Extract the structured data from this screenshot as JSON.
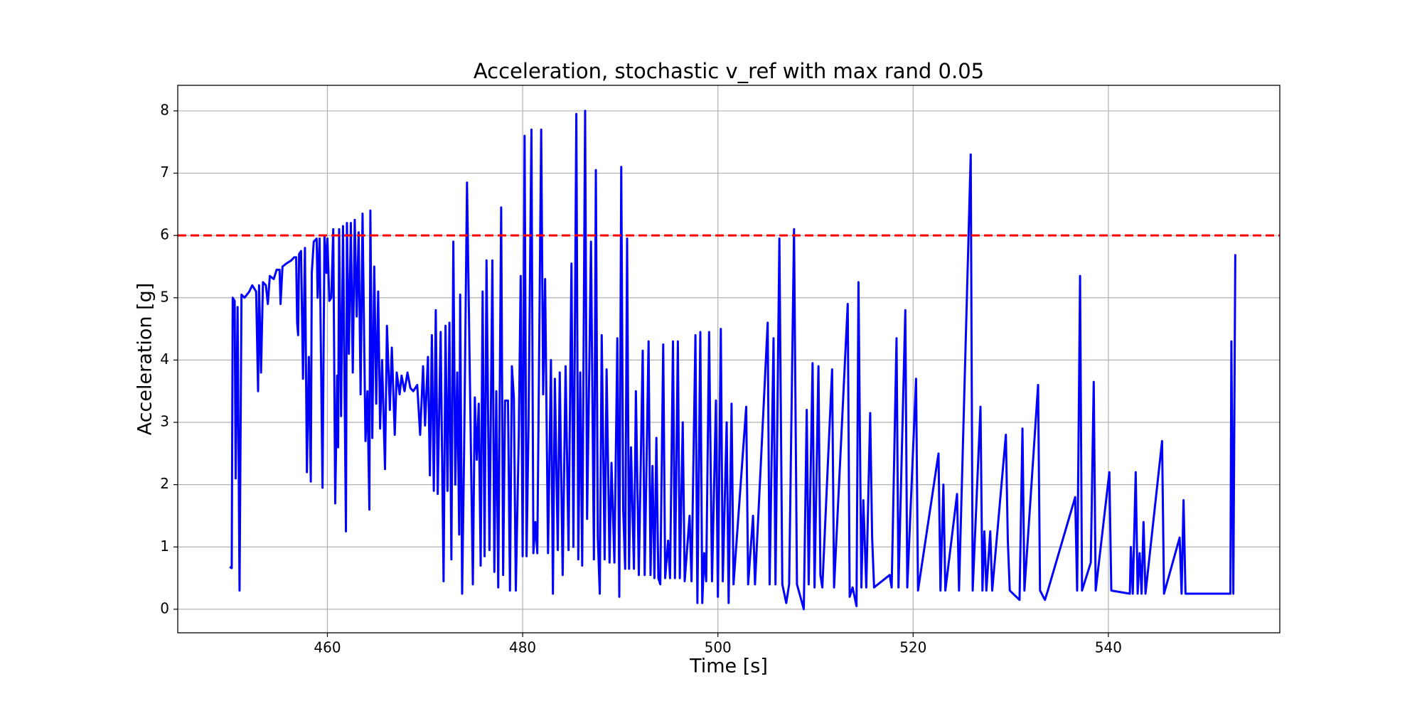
{
  "chart_data": {
    "type": "line",
    "title": "Acceleration, stochastic v_ref with max rand 0.05",
    "xlabel": "Time [s]",
    "ylabel": "Acceleration [g]",
    "xlim": [
      444.67,
      557.56
    ],
    "ylim": [
      -0.378,
      8.41
    ],
    "xticks": [
      460,
      480,
      500,
      520,
      540
    ],
    "yticks": [
      0,
      1,
      2,
      3,
      4,
      5,
      6,
      7,
      8
    ],
    "grid": true,
    "hline": {
      "value": 6,
      "color": "#ff0000"
    },
    "x": [
      450.0,
      450.2,
      450.3,
      450.5,
      450.6,
      450.8,
      451.0,
      451.2,
      451.5,
      452.0,
      452.3,
      452.7,
      452.9,
      453.0,
      453.2,
      453.4,
      453.7,
      453.9,
      454.1,
      454.5,
      454.8,
      455.1,
      455.2,
      455.4,
      455.8,
      456.3,
      456.6,
      456.8,
      456.9,
      457.0,
      457.1,
      457.3,
      457.5,
      457.7,
      457.9,
      458.1,
      458.3,
      458.4,
      458.6,
      458.9,
      459.0,
      459.2,
      459.5,
      459.7,
      459.9,
      460.0,
      460.2,
      460.4,
      460.6,
      460.8,
      461.0,
      461.1,
      461.2,
      461.4,
      461.6,
      461.9,
      462.0,
      462.2,
      462.4,
      462.6,
      462.8,
      463.0,
      463.2,
      463.4,
      463.6,
      463.9,
      464.1,
      464.3,
      464.4,
      464.6,
      464.8,
      465.0,
      465.2,
      465.4,
      465.6,
      465.9,
      466.1,
      466.4,
      466.6,
      466.9,
      467.1,
      467.4,
      467.6,
      467.9,
      468.2,
      468.5,
      468.8,
      469.2,
      469.5,
      469.8,
      470.0,
      470.3,
      470.5,
      470.7,
      470.9,
      471.1,
      471.3,
      471.6,
      471.9,
      472.1,
      472.3,
      472.5,
      472.7,
      472.9,
      473.1,
      473.3,
      473.5,
      473.6,
      473.8,
      474.0,
      474.3,
      474.6,
      474.9,
      475.1,
      475.3,
      475.5,
      475.7,
      475.9,
      476.1,
      476.3,
      476.6,
      476.9,
      477.1,
      477.3,
      477.5,
      477.8,
      478.0,
      478.2,
      478.5,
      478.7,
      478.9,
      479.1,
      479.3,
      479.6,
      479.8,
      480.0,
      480.2,
      480.4,
      480.6,
      480.9,
      481.1,
      481.3,
      481.5,
      481.9,
      482.1,
      482.3,
      482.6,
      482.9,
      483.1,
      483.3,
      483.6,
      483.8,
      484.1,
      484.4,
      484.7,
      485.0,
      485.2,
      485.5,
      485.7,
      485.9,
      486.1,
      486.4,
      486.6,
      486.8,
      487.0,
      487.3,
      487.5,
      487.7,
      487.9,
      488.1,
      488.4,
      488.6,
      488.9,
      489.1,
      489.4,
      489.7,
      489.9,
      490.1,
      490.3,
      490.5,
      490.7,
      490.9,
      491.1,
      491.4,
      491.6,
      491.9,
      492.3,
      492.5,
      492.9,
      493.1,
      493.3,
      493.5,
      493.7,
      493.9,
      494.1,
      494.4,
      494.6,
      494.9,
      495.1,
      495.4,
      495.6,
      495.9,
      496.1,
      496.4,
      496.6,
      497.1,
      497.3,
      497.7,
      497.9,
      498.2,
      498.4,
      498.6,
      498.8,
      499.1,
      499.4,
      499.8,
      500.0,
      500.3,
      500.5,
      500.9,
      501.1,
      501.4,
      501.6,
      502.9,
      503.1,
      503.6,
      503.8,
      505.1,
      505.3,
      505.7,
      505.9,
      506.3,
      506.6,
      507.0,
      507.3,
      507.8,
      508.1,
      508.8,
      509.1,
      509.3,
      509.7,
      509.9,
      510.3,
      510.5,
      510.7,
      511.7,
      511.9,
      513.3,
      513.5,
      513.8,
      514.2,
      514.4,
      514.7,
      514.9,
      515.2,
      515.6,
      515.8,
      516.0,
      517.6,
      517.8,
      518.3,
      518.5,
      519.2,
      519.4,
      520.3,
      520.5,
      522.6,
      522.8,
      523.1,
      523.3,
      524.5,
      524.7,
      525.9,
      526.1,
      526.9,
      527.1,
      527.3,
      527.5,
      527.9,
      528.1,
      529.5,
      529.7,
      529.9,
      530.9,
      531.2,
      531.4,
      532.8,
      533.0,
      533.5,
      533.8,
      536.6,
      536.8,
      537.1,
      537.3,
      538.2,
      538.5,
      538.7,
      540.1,
      540.3,
      542.2,
      542.3,
      542.5,
      542.8,
      543.0,
      543.2,
      543.4,
      543.6,
      543.8,
      545.5,
      545.7,
      547.3,
      547.5,
      547.7,
      547.9,
      552.5,
      552.6,
      552.8,
      553.0
    ],
    "series": [
      {
        "color": "#0000ff",
        "values": [
          0.68,
          0.66,
          5.0,
          4.95,
          2.1,
          4.85,
          0.3,
          5.05,
          5.0,
          5.1,
          5.2,
          5.1,
          3.5,
          5.2,
          3.8,
          5.25,
          5.2,
          4.9,
          5.35,
          5.3,
          5.45,
          5.45,
          4.9,
          5.5,
          5.55,
          5.6,
          5.65,
          5.65,
          4.6,
          4.4,
          5.7,
          5.75,
          3.7,
          5.8,
          2.2,
          4.05,
          2.05,
          5.4,
          5.9,
          5.95,
          5.0,
          5.95,
          1.95,
          6.0,
          5.4,
          5.95,
          4.95,
          5.0,
          6.1,
          1.7,
          3.75,
          2.6,
          6.1,
          3.1,
          6.15,
          1.25,
          6.2,
          4.1,
          6.2,
          3.8,
          6.25,
          4.7,
          6.05,
          3.45,
          6.35,
          2.7,
          3.5,
          1.6,
          6.4,
          2.75,
          5.5,
          3.3,
          5.1,
          2.9,
          4.0,
          2.25,
          4.55,
          3.2,
          4.2,
          2.8,
          3.8,
          3.45,
          3.75,
          3.5,
          3.8,
          3.55,
          3.5,
          3.6,
          2.8,
          3.9,
          2.95,
          4.05,
          2.15,
          4.4,
          1.9,
          4.8,
          1.85,
          4.45,
          0.45,
          4.55,
          1.9,
          4.6,
          0.8,
          5.9,
          2.0,
          3.8,
          1.2,
          5.05,
          0.25,
          2.5,
          6.85,
          3.65,
          0.4,
          3.4,
          2.4,
          3.3,
          0.7,
          5.1,
          0.85,
          5.6,
          0.95,
          5.6,
          0.6,
          3.5,
          0.35,
          6.45,
          0.55,
          3.35,
          3.35,
          0.3,
          3.9,
          3.4,
          0.3,
          2.75,
          5.35,
          0.85,
          7.6,
          0.85,
          2.95,
          7.7,
          0.9,
          1.4,
          0.9,
          7.7,
          3.45,
          5.3,
          0.9,
          4.0,
          0.25,
          3.7,
          0.95,
          3.8,
          0.55,
          3.9,
          0.95,
          5.55,
          1.0,
          7.95,
          0.8,
          3.8,
          0.7,
          8.0,
          1.45,
          3.6,
          5.9,
          0.8,
          7.05,
          1.15,
          0.25,
          4.4,
          0.8,
          3.85,
          0.75,
          2.35,
          0.75,
          4.35,
          0.2,
          7.1,
          1.6,
          0.65,
          5.95,
          0.65,
          2.6,
          0.65,
          3.5,
          0.55,
          4.15,
          0.55,
          4.3,
          0.55,
          2.3,
          0.5,
          2.75,
          0.5,
          0.4,
          4.25,
          0.5,
          1.1,
          0.5,
          4.3,
          0.5,
          4.3,
          0.5,
          3.0,
          0.45,
          1.5,
          0.45,
          4.4,
          0.1,
          4.45,
          0.1,
          0.9,
          0.45,
          4.45,
          0.45,
          3.35,
          0.2,
          4.5,
          0.45,
          3.0,
          0.1,
          3.3,
          0.4,
          3.25,
          0.4,
          1.5,
          0.4,
          4.6,
          0.4,
          4.35,
          0.4,
          5.95,
          0.4,
          0.1,
          0.4,
          6.1,
          0.4,
          0.0,
          3.2,
          0.4,
          3.95,
          0.35,
          3.9,
          0.55,
          0.35,
          3.85,
          0.35,
          4.9,
          0.2,
          0.35,
          0.05,
          5.25,
          0.35,
          1.75,
          0.35,
          3.15,
          1.15,
          0.35,
          0.55,
          0.35,
          4.35,
          0.35,
          4.8,
          0.35,
          3.7,
          0.3,
          2.5,
          0.3,
          2.0,
          0.3,
          1.85,
          0.3,
          7.3,
          0.3,
          3.25,
          0.3,
          1.25,
          0.3,
          1.25,
          0.3,
          2.8,
          1.1,
          0.3,
          0.15,
          2.9,
          0.3,
          3.6,
          0.3,
          0.15,
          0.3,
          1.8,
          0.3,
          5.35,
          0.3,
          0.75,
          3.65,
          0.3,
          2.2,
          0.3,
          0.25,
          1.0,
          0.25,
          2.2,
          0.25,
          0.9,
          0.25,
          1.4,
          0.25,
          2.7,
          0.25,
          1.15,
          0.25,
          1.75,
          0.25,
          0.25,
          4.3,
          0.25,
          5.7
        ]
      }
    ]
  }
}
